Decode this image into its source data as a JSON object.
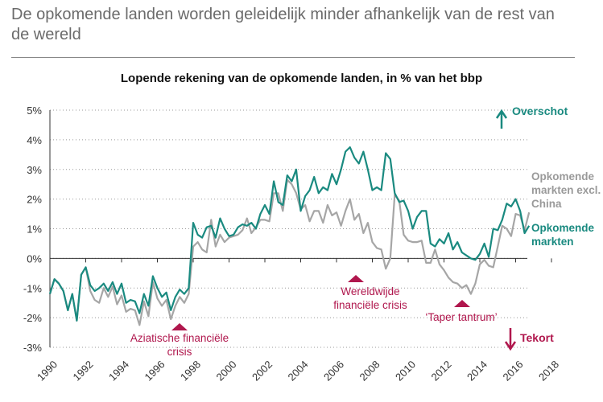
{
  "header": {
    "title": "De opkomende landen worden geleidelijk minder afhankelijk van de rest van de wereld"
  },
  "chart_data": {
    "type": "line",
    "title": "Lopende rekening van de opkomende landen, in % van het bbp",
    "x": [
      1990,
      1990.25,
      1990.5,
      1990.75,
      1991,
      1991.25,
      1991.5,
      1991.75,
      1992,
      1992.25,
      1992.5,
      1992.75,
      1993,
      1993.25,
      1993.5,
      1993.75,
      1994,
      1994.25,
      1994.5,
      1994.75,
      1995,
      1995.25,
      1995.5,
      1995.75,
      1996,
      1996.25,
      1996.5,
      1996.75,
      1997,
      1997.25,
      1997.5,
      1997.75,
      1998,
      1998.25,
      1998.5,
      1998.75,
      1999,
      1999.25,
      1999.5,
      1999.75,
      2000,
      2000.25,
      2000.5,
      2000.75,
      2001,
      2001.25,
      2001.5,
      2001.75,
      2002,
      2002.25,
      2002.5,
      2002.75,
      2003,
      2003.25,
      2003.5,
      2003.75,
      2004,
      2004.25,
      2004.5,
      2004.75,
      2005,
      2005.25,
      2005.5,
      2005.75,
      2006,
      2006.25,
      2006.5,
      2006.75,
      2007,
      2007.25,
      2007.5,
      2007.75,
      2008,
      2008.25,
      2008.5,
      2008.75,
      2009,
      2009.25,
      2009.5,
      2009.75,
      2010,
      2010.25,
      2010.5,
      2010.75,
      2011,
      2011.25,
      2011.5,
      2011.75,
      2012,
      2012.25,
      2012.5,
      2012.75,
      2013,
      2013.25,
      2013.5,
      2013.75,
      2014,
      2014.25,
      2014.5,
      2014.75,
      2015,
      2015.25,
      2015.5,
      2015.75,
      2016,
      2016.25,
      2016.5,
      2016.75
    ],
    "series": [
      {
        "name": "Opkomende markten excl. China",
        "color": "#a6a6a6",
        "values": [
          -1.2,
          -0.7,
          -0.85,
          -1.1,
          -1.75,
          -1.2,
          -2.1,
          -0.55,
          -0.3,
          -1.1,
          -1.4,
          -1.5,
          -1.0,
          -1.3,
          -0.95,
          -1.55,
          -1.25,
          -1.8,
          -1.7,
          -1.75,
          -2.25,
          -1.45,
          -1.95,
          -0.8,
          -1.35,
          -1.6,
          -1.4,
          -2.05,
          -1.6,
          -1.3,
          -1.5,
          -1.2,
          0.4,
          0.55,
          0.3,
          0.2,
          1.3,
          0.4,
          0.8,
          0.55,
          0.7,
          0.75,
          0.8,
          0.95,
          1.35,
          0.85,
          1.05,
          1.3,
          1.3,
          1.25,
          2.2,
          2.2,
          1.6,
          2.65,
          2.5,
          2.2,
          1.65,
          1.8,
          1.25,
          1.6,
          1.6,
          1.2,
          1.8,
          1.45,
          1.55,
          1.1,
          1.6,
          2.0,
          1.3,
          1.5,
          0.85,
          1.2,
          0.55,
          0.35,
          0.3,
          -0.35,
          0.0,
          2.15,
          1.95,
          0.8,
          0.6,
          0.55,
          0.55,
          0.6,
          -0.15,
          -0.15,
          0.3,
          -0.2,
          -0.4,
          -0.65,
          -0.8,
          -0.85,
          -1.0,
          -0.9,
          -1.2,
          -0.85,
          -0.2,
          -0.05,
          -0.25,
          -0.3,
          0.4,
          1.1,
          1.0,
          0.75,
          1.5,
          1.45,
          0.95,
          1.55
        ]
      },
      {
        "name": "Opkomende markten",
        "color": "#1a8a80",
        "values": [
          -1.2,
          -0.7,
          -0.85,
          -1.1,
          -1.75,
          -1.2,
          -2.1,
          -0.55,
          -0.3,
          -0.9,
          -1.1,
          -1.0,
          -0.85,
          -1.1,
          -0.8,
          -1.2,
          -0.85,
          -1.5,
          -1.4,
          -1.45,
          -1.85,
          -1.2,
          -1.6,
          -0.6,
          -1.0,
          -1.3,
          -1.15,
          -1.75,
          -1.3,
          -1.05,
          -1.2,
          -1.0,
          1.2,
          0.8,
          0.7,
          1.05,
          1.1,
          0.7,
          1.35,
          1.0,
          0.75,
          0.8,
          1.05,
          1.15,
          1.1,
          1.2,
          1.0,
          1.5,
          1.8,
          1.5,
          2.6,
          1.9,
          1.8,
          2.8,
          2.6,
          3.0,
          1.6,
          2.1,
          2.3,
          2.75,
          2.2,
          2.4,
          2.3,
          2.85,
          2.5,
          3.0,
          3.6,
          3.75,
          3.4,
          3.2,
          3.6,
          3.0,
          2.3,
          2.4,
          2.3,
          3.55,
          3.35,
          2.2,
          1.9,
          1.95,
          1.6,
          1.0,
          1.4,
          1.6,
          1.6,
          0.5,
          0.4,
          0.65,
          0.5,
          0.85,
          0.3,
          0.55,
          0.2,
          0.1,
          0.0,
          -0.05,
          0.15,
          0.5,
          0.05,
          1.0,
          0.95,
          1.3,
          1.85,
          1.75,
          2.0,
          1.6,
          0.85,
          1.1
        ]
      }
    ],
    "xlim": [
      1990,
      2018
    ],
    "xticks": [
      1990,
      1992,
      1994,
      1996,
      1998,
      2000,
      2002,
      2004,
      2006,
      2008,
      2010,
      2012,
      2014,
      2016,
      2018
    ],
    "ylim": [
      -3,
      5
    ],
    "yticks": [
      {
        "value": -3,
        "label": "-3%"
      },
      {
        "value": -2,
        "label": "-2%"
      },
      {
        "value": -1,
        "label": "-1%"
      },
      {
        "value": 0,
        "label": "0%"
      },
      {
        "value": 1,
        "label": "1%"
      },
      {
        "value": 2,
        "label": "2%"
      },
      {
        "value": 3,
        "label": "3%"
      },
      {
        "value": 4,
        "label": "4%"
      },
      {
        "value": 5,
        "label": "5%"
      }
    ],
    "grid": true,
    "annotations": [
      "Aziatische financiële crisis",
      "Wereldwijde financiële crisis",
      "‘Taper tantrum’",
      "Overschot",
      "Tekort"
    ]
  }
}
